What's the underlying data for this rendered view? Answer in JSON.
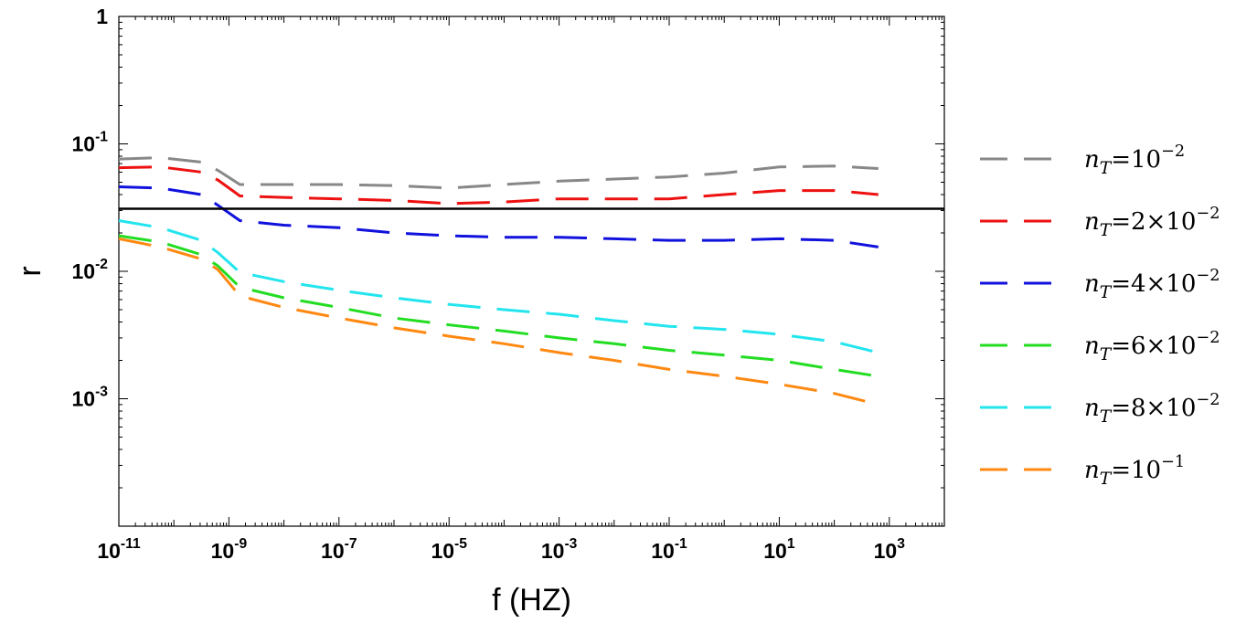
{
  "chart_data": {
    "type": "line",
    "title": "",
    "xlabel": "f (HZ)",
    "ylabel": "r",
    "x_scale": "log",
    "y_scale": "log",
    "xlim_log10": [
      -11,
      4
    ],
    "ylim_log10": [
      -4,
      0
    ],
    "x_ticks": [
      {
        "base": "10",
        "exp": "-11",
        "log": -11
      },
      {
        "base": "10",
        "exp": "-9",
        "log": -9
      },
      {
        "base": "10",
        "exp": "-7",
        "log": -7
      },
      {
        "base": "10",
        "exp": "-5",
        "log": -5
      },
      {
        "base": "10",
        "exp": "-3",
        "log": -3
      },
      {
        "base": "10",
        "exp": "-1",
        "log": -1
      },
      {
        "base": "10",
        "exp": "1",
        "log": 1
      },
      {
        "base": "10",
        "exp": "3",
        "log": 3
      }
    ],
    "y_ticks": [
      {
        "base": "1",
        "exp": "",
        "log": 0
      },
      {
        "base": "10",
        "exp": "-1",
        "log": -1
      },
      {
        "base": "10",
        "exp": "-2",
        "log": -2
      },
      {
        "base": "10",
        "exp": "-3",
        "log": -3
      }
    ],
    "reference_line": {
      "y": 0.031,
      "color": "#000000",
      "label": ""
    },
    "legend_position": "right",
    "series": [
      {
        "name": "nT=10^-2",
        "prefix": "",
        "base": "10",
        "exp": "-2",
        "color": "#888888",
        "x_log10": [
          -11,
          -10.25,
          -9.5,
          -9.2,
          -8.8,
          -8,
          -7,
          -6,
          -5,
          -4,
          -3,
          -2,
          -1,
          0,
          1,
          2,
          2.8
        ],
        "y": [
          0.076,
          0.078,
          0.072,
          0.062,
          0.048,
          0.048,
          0.048,
          0.047,
          0.045,
          0.048,
          0.051,
          0.053,
          0.055,
          0.059,
          0.066,
          0.067,
          0.064
        ]
      },
      {
        "name": "nT=2x10^-2",
        "prefix": "2×",
        "base": "10",
        "exp": "-2",
        "color": "#ee1111",
        "x_log10": [
          -11,
          -10.25,
          -9.5,
          -9.2,
          -8.8,
          -8,
          -7,
          -6,
          -5,
          -4,
          -3,
          -2,
          -1,
          0,
          1,
          2,
          2.8
        ],
        "y": [
          0.065,
          0.066,
          0.06,
          0.052,
          0.039,
          0.038,
          0.037,
          0.036,
          0.034,
          0.035,
          0.037,
          0.037,
          0.037,
          0.04,
          0.043,
          0.043,
          0.04
        ]
      },
      {
        "name": "nT=4x10^-2",
        "prefix": "4×",
        "base": "10",
        "exp": "-2",
        "color": "#1111dd",
        "x_log10": [
          -11,
          -10.25,
          -9.5,
          -9.2,
          -8.8,
          -8,
          -7,
          -6,
          -5,
          -4,
          -3,
          -2,
          -1,
          0,
          1,
          2,
          2.8
        ],
        "y": [
          0.046,
          0.045,
          0.04,
          0.033,
          0.025,
          0.023,
          0.022,
          0.02,
          0.019,
          0.0185,
          0.0185,
          0.018,
          0.0175,
          0.0175,
          0.018,
          0.0175,
          0.0155
        ]
      },
      {
        "name": "nT=6x10^-2",
        "prefix": "6×",
        "base": "10",
        "exp": "-2",
        "color": "#22dd22",
        "x_log10": [
          -11,
          -10.25,
          -9.5,
          -9.2,
          -8.8,
          -8,
          -7,
          -6,
          -5,
          -4,
          -3,
          -2,
          -1,
          0,
          1,
          2,
          2.8
        ],
        "y": [
          0.019,
          0.017,
          0.0135,
          0.011,
          0.0075,
          0.0062,
          0.0052,
          0.0043,
          0.0038,
          0.0034,
          0.003,
          0.0027,
          0.0024,
          0.0022,
          0.002,
          0.0017,
          0.0015
        ]
      },
      {
        "name": "nT=8x10^-2",
        "prefix": "8×",
        "base": "10",
        "exp": "-2",
        "color": "#22e5ee",
        "x_log10": [
          -11,
          -10.25,
          -9.5,
          -9.2,
          -8.8,
          -8,
          -7,
          -6,
          -5,
          -4,
          -3,
          -2,
          -1,
          0,
          1,
          2,
          2.8
        ],
        "y": [
          0.025,
          0.022,
          0.0175,
          0.014,
          0.0098,
          0.0083,
          0.0071,
          0.0062,
          0.0055,
          0.005,
          0.0046,
          0.0041,
          0.0037,
          0.0035,
          0.0032,
          0.0028,
          0.0023
        ]
      },
      {
        "name": "nT=10^-1",
        "prefix": "",
        "base": "10",
        "exp": "-1",
        "color": "#ff8811",
        "x_log10": [
          -11,
          -10.25,
          -9.5,
          -9.2,
          -8.8,
          -8,
          -7,
          -6,
          -5,
          -4,
          -3,
          -2,
          -1,
          0,
          1,
          2,
          2.8
        ],
        "y": [
          0.018,
          0.0155,
          0.0125,
          0.0103,
          0.0064,
          0.0052,
          0.0043,
          0.0036,
          0.0031,
          0.0027,
          0.0023,
          0.002,
          0.0017,
          0.0015,
          0.0013,
          0.0011,
          0.0009
        ]
      }
    ]
  }
}
